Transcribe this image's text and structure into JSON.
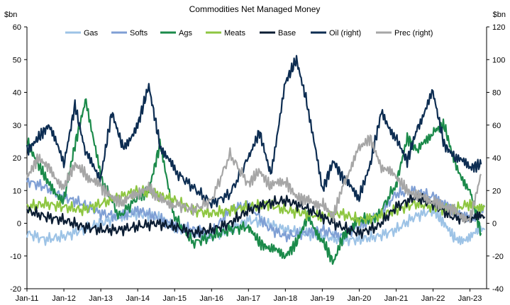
{
  "chart_data": {
    "type": "line",
    "title": "Commodities Net Managed Money",
    "left_unit": "$bn",
    "right_unit": "$bn",
    "left_axis": {
      "min": -20,
      "max": 60,
      "step": 10,
      "ticks": [
        "60",
        "50",
        "40",
        "30",
        "20",
        "10",
        "0",
        "-10",
        "-20"
      ]
    },
    "right_axis": {
      "min": -40,
      "max": 120,
      "step": 20,
      "ticks": [
        "120",
        "100",
        "80",
        "60",
        "40",
        "20",
        "0",
        "-20",
        "-40"
      ]
    },
    "x_range": [
      2011.0,
      2023.45
    ],
    "x_ticks": [
      "Jan-11",
      "Jan-12",
      "Jan-13",
      "Jan-14",
      "Jan-15",
      "Jan-16",
      "Jan-17",
      "Jan-18",
      "Jan-19",
      "Jan-20",
      "Jan-21",
      "Jan-22",
      "Jan-23"
    ],
    "legend_position": "top",
    "series": [
      {
        "name": "Gas",
        "axis": "left",
        "color": "#9dc3e6",
        "x": [
          2011,
          2011.5,
          2012,
          2012.5,
          2013,
          2013.5,
          2014,
          2014.5,
          2015,
          2015.5,
          2016,
          2016.5,
          2017,
          2017.5,
          2018,
          2018.5,
          2019,
          2019.5,
          2020,
          2020.5,
          2021,
          2021.5,
          2022,
          2022.3,
          2022.6,
          2023,
          2023.4
        ],
        "y": [
          -3,
          -5,
          -4,
          -2,
          0,
          2,
          3,
          2,
          -1,
          -3,
          -4,
          -2,
          1,
          0,
          -2,
          -3,
          -4,
          -5,
          -5,
          -4,
          -2,
          2,
          4,
          0,
          -5,
          -4,
          -2
        ]
      },
      {
        "name": "Softs",
        "axis": "left",
        "color": "#7f9fd4",
        "x": [
          2011,
          2011.5,
          2012,
          2012.5,
          2013,
          2013.5,
          2014,
          2014.5,
          2015,
          2015.5,
          2016,
          2016.5,
          2017,
          2017.5,
          2018,
          2018.5,
          2019,
          2019.5,
          2020,
          2020.5,
          2021,
          2021.5,
          2022,
          2022.3,
          2022.6,
          2023,
          2023.4
        ],
        "y": [
          13,
          11,
          8,
          6,
          3,
          2,
          4,
          2,
          -1,
          -2,
          -3,
          4,
          6,
          -1,
          -4,
          -3,
          -2,
          -4,
          -1,
          2,
          9,
          10,
          8,
          6,
          3,
          1,
          5
        ]
      },
      {
        "name": "Ags",
        "axis": "left",
        "color": "#1b8a4a",
        "x": [
          2011,
          2011.3,
          2011.6,
          2012,
          2012.3,
          2012.6,
          2013,
          2013.5,
          2014,
          2014.3,
          2014.6,
          2015,
          2015.5,
          2016,
          2016.5,
          2017,
          2017.3,
          2017.6,
          2018,
          2018.3,
          2018.6,
          2019,
          2019.3,
          2019.6,
          2020,
          2020.5,
          2021,
          2021.3,
          2021.6,
          2022,
          2022.3,
          2022.6,
          2023,
          2023.3
        ],
        "y": [
          25,
          18,
          12,
          7,
          24,
          38,
          14,
          2,
          8,
          10,
          24,
          2,
          -6,
          -4,
          -2,
          -1,
          -6,
          -8,
          -10,
          -6,
          2,
          -5,
          -12,
          -3,
          1,
          2,
          12,
          26,
          22,
          28,
          30,
          18,
          10,
          -3
        ]
      },
      {
        "name": "Meats",
        "axis": "left",
        "color": "#8ec641",
        "x": [
          2011,
          2011.5,
          2012,
          2012.5,
          2013,
          2013.5,
          2014,
          2014.5,
          2015,
          2015.5,
          2016,
          2016.5,
          2017,
          2017.5,
          2018,
          2018.5,
          2019,
          2019.5,
          2020,
          2020.5,
          2021,
          2021.5,
          2022,
          2022.5,
          2023,
          2023.4
        ],
        "y": [
          5,
          6,
          5,
          4,
          6,
          8,
          10,
          9,
          7,
          4,
          3,
          4,
          5,
          6,
          4,
          3,
          2,
          3,
          1,
          2,
          4,
          6,
          5,
          4,
          6,
          5
        ]
      },
      {
        "name": "Base",
        "axis": "left",
        "color": "#0b1d33",
        "x": [
          2011,
          2011.5,
          2012,
          2012.5,
          2013,
          2013.5,
          2014,
          2014.5,
          2015,
          2015.5,
          2016,
          2016.5,
          2017,
          2017.5,
          2018,
          2018.5,
          2019,
          2019.5,
          2020,
          2020.5,
          2021,
          2021.5,
          2022,
          2022.5,
          2023,
          2023.4
        ],
        "y": [
          4,
          2,
          1,
          -1,
          -2,
          -2,
          -1,
          0,
          -1,
          -3,
          -2,
          0,
          4,
          6,
          7,
          5,
          2,
          -1,
          -3,
          -1,
          5,
          8,
          6,
          2,
          1,
          2
        ]
      },
      {
        "name": "Oil (right)",
        "axis": "right",
        "color": "#0d2d52",
        "x": [
          2011,
          2011.3,
          2011.6,
          2012,
          2012.3,
          2012.6,
          2013,
          2013.3,
          2013.6,
          2014,
          2014.3,
          2014.6,
          2015,
          2015.5,
          2016,
          2016.5,
          2017,
          2017.3,
          2017.6,
          2018,
          2018.3,
          2018.6,
          2019,
          2019.3,
          2019.6,
          2020,
          2020.3,
          2020.6,
          2021,
          2021.3,
          2021.6,
          2022,
          2022.3,
          2022.6,
          2023,
          2023.3
        ],
        "y": [
          44,
          52,
          60,
          36,
          72,
          42,
          28,
          68,
          46,
          60,
          84,
          48,
          32,
          22,
          12,
          18,
          40,
          56,
          30,
          86,
          100,
          72,
          20,
          38,
          26,
          16,
          36,
          68,
          52,
          38,
          60,
          80,
          48,
          40,
          34,
          36
        ]
      },
      {
        "name": "Prec (right)",
        "axis": "right",
        "color": "#a6a6a6",
        "x": [
          2011,
          2011.3,
          2011.6,
          2012,
          2012.3,
          2012.6,
          2013,
          2013.3,
          2013.6,
          2014,
          2014.3,
          2014.6,
          2015,
          2015.5,
          2016,
          2016.5,
          2017,
          2017.3,
          2017.6,
          2018,
          2018.3,
          2018.6,
          2019,
          2019.3,
          2019.6,
          2020,
          2020.3,
          2020.6,
          2021,
          2021.3,
          2021.6,
          2022,
          2022.3,
          2022.6,
          2023,
          2023.3
        ],
        "y": [
          28,
          40,
          34,
          22,
          36,
          30,
          22,
          16,
          12,
          18,
          22,
          14,
          12,
          8,
          14,
          42,
          24,
          32,
          22,
          26,
          16,
          14,
          12,
          4,
          26,
          46,
          52,
          34,
          28,
          20,
          16,
          14,
          10,
          8,
          2,
          30
        ]
      }
    ]
  }
}
